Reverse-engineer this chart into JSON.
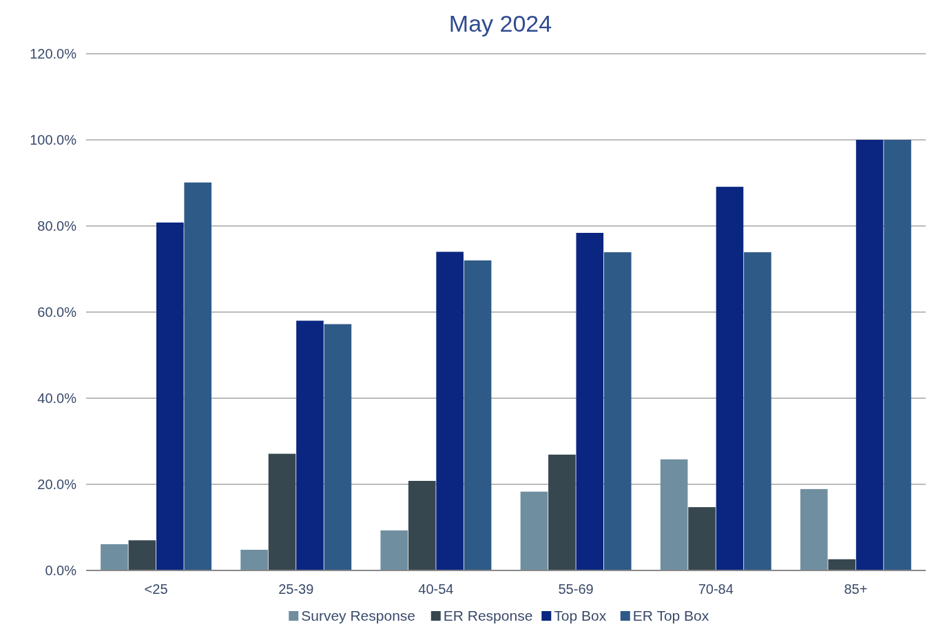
{
  "chart_data": {
    "type": "bar",
    "title": "May 2024",
    "categories": [
      "<25",
      "25-39",
      "40-54",
      "55-69",
      "70-84",
      "85+"
    ],
    "series": [
      {
        "name": "Survey Response",
        "color": "#6f8fa0",
        "values": [
          6.1,
          4.8,
          9.3,
          18.3,
          25.8,
          18.9
        ]
      },
      {
        "name": "ER Response",
        "color": "#37474f",
        "values": [
          7.0,
          27.1,
          20.8,
          26.9,
          14.7,
          2.6
        ]
      },
      {
        "name": "Top Box",
        "color": "#0a2680",
        "values": [
          80.8,
          58.0,
          74.0,
          78.4,
          89.1,
          100
        ]
      },
      {
        "name": "ER Top Box",
        "color": "#2e5a87",
        "values": [
          90.1,
          57.2,
          72.0,
          73.9,
          73.9,
          100
        ]
      }
    ],
    "ylim": [
      0,
      120
    ],
    "yticks": [
      {
        "value": 0,
        "label": "0.0%"
      },
      {
        "value": 20,
        "label": "20.0%"
      },
      {
        "value": 40,
        "label": "40.0%"
      },
      {
        "value": 60,
        "label": "60.0%"
      },
      {
        "value": 80,
        "label": "80.0%"
      },
      {
        "value": 100,
        "label": "100.0%"
      },
      {
        "value": 120,
        "label": "120.0%"
      }
    ],
    "grid": "y",
    "legend": "bottom"
  }
}
